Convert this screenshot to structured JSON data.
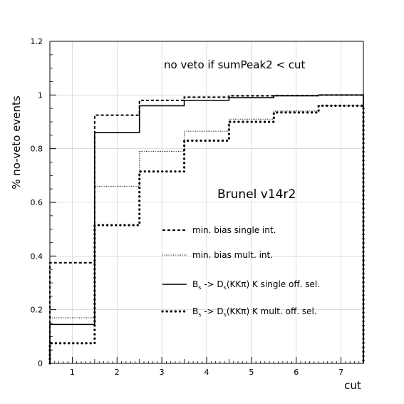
{
  "chart_data": {
    "type": "line",
    "title": "",
    "xlabel": "cut",
    "ylabel": "% no-veto events",
    "xlim": [
      0.5,
      7.5
    ],
    "ylim": [
      0,
      1.2
    ],
    "grid": true,
    "legend_position": "center-right",
    "x_ticks": [
      "1",
      "2",
      "3",
      "4",
      "5",
      "6",
      "7"
    ],
    "y_ticks": [
      "0",
      "0.2",
      "0.4",
      "0.6",
      "0.8",
      "1",
      "1.2"
    ],
    "annotations": {
      "condition": "no veto if sumPeak2 < cut",
      "version": "Brunel v14r2"
    },
    "series": [
      {
        "name": "min. bias single int.",
        "style": "dashed",
        "edges": [
          0.5,
          1.5,
          2.5,
          3.5,
          4.5,
          5.5,
          6.5,
          7.5
        ],
        "values": [
          0.375,
          0.925,
          0.98,
          0.992,
          0.997,
          0.998,
          1.0
        ]
      },
      {
        "name": "min. bias mult. int.",
        "style": "dotted",
        "edges": [
          0.5,
          1.5,
          2.5,
          3.5,
          4.5,
          5.5,
          6.5,
          7.5
        ],
        "values": [
          0.17,
          0.66,
          0.79,
          0.865,
          0.91,
          0.94,
          0.96
        ]
      },
      {
        "name_parts": [
          "B",
          "s",
          " -> D",
          "s",
          "(KKπ) K single off. sel."
        ],
        "style": "solid",
        "edges": [
          0.5,
          1.5,
          2.5,
          3.5,
          4.5,
          5.5,
          6.5,
          7.5
        ],
        "values": [
          0.145,
          0.86,
          0.96,
          0.98,
          0.99,
          0.997,
          1.0
        ]
      },
      {
        "name_parts": [
          "B",
          "s",
          " -> D",
          "s",
          "(KKπ) K mult. off. sel."
        ],
        "style": "heavy-dotted",
        "edges": [
          0.5,
          1.5,
          2.5,
          3.5,
          4.5,
          5.5,
          6.5,
          7.5
        ],
        "values": [
          0.075,
          0.515,
          0.715,
          0.83,
          0.9,
          0.935,
          0.96
        ]
      }
    ]
  }
}
